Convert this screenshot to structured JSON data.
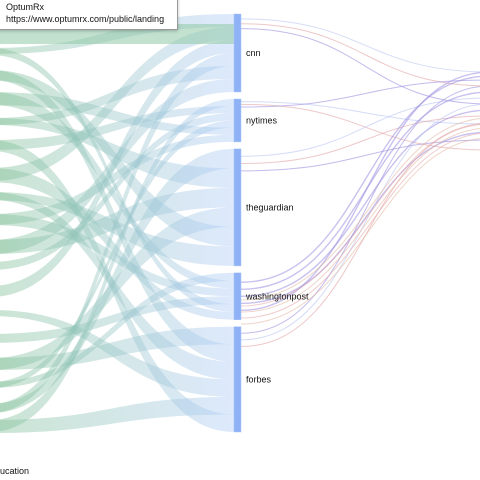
{
  "tooltip": {
    "title": "OptumRx",
    "url": "https://www.optumrx.com/public/landing"
  },
  "bottom_label": "ucation",
  "nodes": [
    {
      "label": "cnn",
      "from": 0.0,
      "to": 0.2
    },
    {
      "label": "nytimes",
      "from": 0.2,
      "to": 0.31
    },
    {
      "label": "theguardian",
      "from": 0.31,
      "to": 0.61
    },
    {
      "label": "washingtonpost",
      "from": 0.61,
      "to": 0.73
    },
    {
      "label": "forbes",
      "from": 0.73,
      "to": 1.0
    }
  ],
  "colors": {
    "node": "#8fb2f6",
    "node_edge": "#a7c4fa",
    "link_left": "#8fc2a0",
    "link_mid": "#b3cdf6",
    "link_right_blue": "#b7c4f2",
    "link_right_red": "#e3a4a4",
    "link_right_purple": "#9d8ee0"
  }
}
